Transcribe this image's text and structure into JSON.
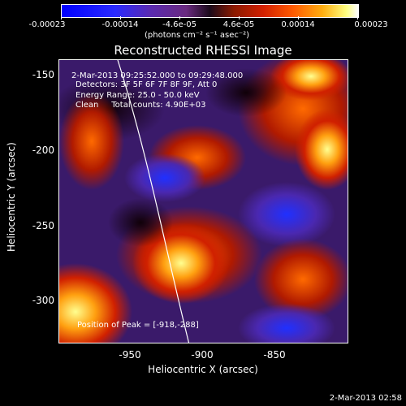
{
  "colorbar": {
    "tick_labels": [
      "-0.00023",
      "-0.00014",
      "-4.6e-05",
      "4.6e-05",
      "0.00014",
      "0.00023"
    ],
    "units": "(photons cm⁻² s⁻¹ asec⁻²)"
  },
  "title": "Reconstructed RHESSI Image",
  "info": {
    "time": "2-Mar-2013 09:25:52.000 to 09:29:48.000",
    "detectors": "Detectors: 3F 5F 6F 7F 8F 9F, Att 0",
    "energy": "Energy Range: 25.0 - 50.0 keV",
    "clean": "Clean     Total counts: 4.90E+03"
  },
  "peak_label": "Position of Peak = [-918,-288]",
  "axes": {
    "xlabel": "Heliocentric X (arcsec)",
    "ylabel": "Heliocentric Y (arcsec)",
    "xticks": [
      "-950",
      "-900",
      "-850"
    ],
    "yticks": [
      "-150",
      "-200",
      "-250",
      "-300"
    ]
  },
  "timestamp": "2-Mar-2013 02:58",
  "colors": {
    "background": "#000000",
    "text": "#ffffff"
  }
}
